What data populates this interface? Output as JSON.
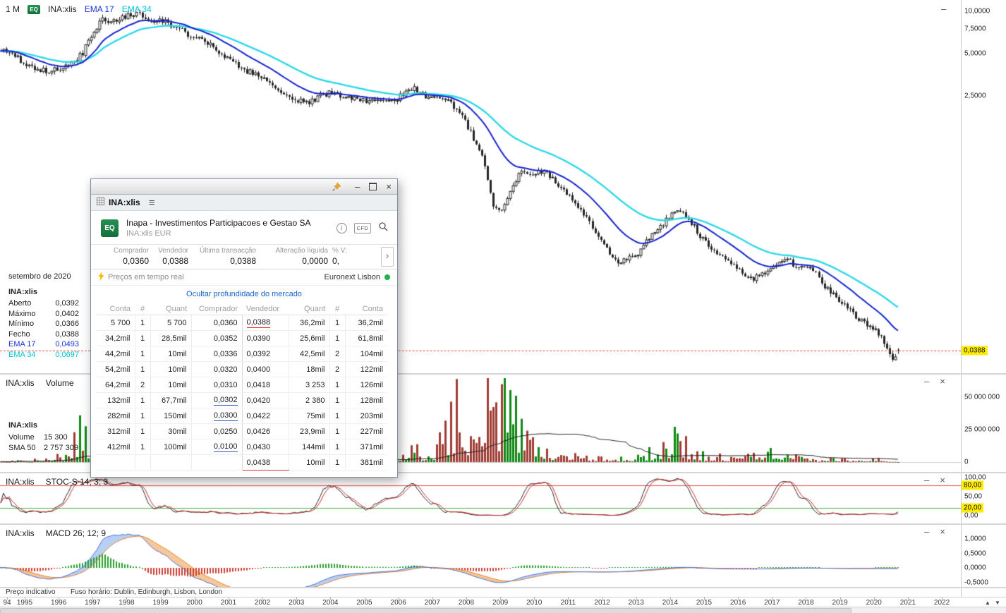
{
  "icons": {
    "minus": "–",
    "close": "×",
    "menu": "≡",
    "chevron_right": "›",
    "info": "i",
    "up_arrow": "▲",
    "down_arrow": "▼"
  },
  "main_chart": {
    "period": "1 M",
    "eq_badge": "EQ",
    "symbol": "INA:xlis",
    "ema17_label": "EMA 17",
    "ema34_label": "EMA 34",
    "price_axis": [
      "10,0000",
      "7,5000",
      "5,0000",
      "2,5000"
    ],
    "last_price_badge": "0,0388",
    "data_window": {
      "date": "setembro de 2020",
      "symbol": "INA:xlis",
      "rows": [
        {
          "label": "Aberto",
          "value": "0,0392"
        },
        {
          "label": "Máximo",
          "value": "0,0402"
        },
        {
          "label": "Mínimo",
          "value": "0,0366"
        },
        {
          "label": "Fecho",
          "value": "0,0388"
        },
        {
          "label": "EMA 17",
          "value": "0,0493",
          "cls": "ema17"
        },
        {
          "label": "EMA 34",
          "value": "0,0697",
          "cls": "ema34"
        }
      ]
    }
  },
  "volume_panel": {
    "title_symbol": "INA:xlis",
    "title_study": "Volume",
    "axis": [
      "50 000 000",
      "25 000 000",
      "0"
    ],
    "overlay": {
      "symbol": "INA:xlis",
      "volume_label": "Volume",
      "volume_value": "15 300",
      "sma_label": "SMA 50",
      "sma_value": "2 757 309"
    }
  },
  "stoch_panel": {
    "title_symbol": "INA:xlis",
    "title_study": "STOC-S 14; 3; 3",
    "axis": [
      "100,00",
      "80,00",
      "50,00",
      "20,00",
      "0,00"
    ]
  },
  "macd_panel": {
    "title_symbol": "INA:xlis",
    "title_study": "MACD 26; 12; 9",
    "axis": [
      "1,0000",
      "0,5000",
      "0,0000",
      "-0,5000"
    ]
  },
  "status_bar": {
    "left": "Preço indicativo",
    "right": "Fuso horário: Dublin, Edinburgh, Lisbon, London"
  },
  "time_axis": [
    "94",
    "1995",
    "1996",
    "1997",
    "1998",
    "1999",
    "2000",
    "2001",
    "2002",
    "2003",
    "2004",
    "2005",
    "2006",
    "2007",
    "2008",
    "2009",
    "2010",
    "2011",
    "2012",
    "2013",
    "2014",
    "2015",
    "2016",
    "2017",
    "2018",
    "2019",
    "2020",
    "2021",
    "2022"
  ],
  "window": {
    "tab_title": "INA:xlis",
    "company": "Inapa - Investimentos Participacoes e Gestao SA",
    "instrument": "INA:xlis EUR",
    "eq_badge": "EQ",
    "cfd_badge": "CFD",
    "quote": {
      "headers": [
        "Comprador",
        "Vendedor",
        "Última transacção",
        "Alteração líquida",
        "% V:"
      ],
      "values": [
        "0,0360",
        "0,0388",
        "0,0388",
        "0,0000",
        "0,"
      ]
    },
    "realtime": "Preços em tempo real",
    "exchange": "Euronext Lisbon",
    "depth_link": "Ocultar profundidade do mercado",
    "table": {
      "headers": [
        "Conta",
        "#",
        "Quant",
        "Comprador",
        "Vendedor",
        "Quant",
        "#",
        "Conta"
      ],
      "rows": [
        {
          "c": [
            "5 700",
            "1",
            "5 700",
            "0,0360",
            "0,0388",
            "36,2mil",
            "1",
            "36,2mil"
          ],
          "u": {
            "4": "red"
          }
        },
        {
          "c": [
            "34,2mil",
            "1",
            "28,5mil",
            "0,0352",
            "0,0390",
            "25,6mil",
            "1",
            "61,8mil"
          ]
        },
        {
          "c": [
            "44,2mil",
            "1",
            "10mil",
            "0,0336",
            "0,0392",
            "42,5mil",
            "2",
            "104mil"
          ]
        },
        {
          "c": [
            "54,2mil",
            "1",
            "10mil",
            "0,0320",
            "0,0400",
            "18mil",
            "2",
            "122mil"
          ]
        },
        {
          "c": [
            "64,2mil",
            "2",
            "10mil",
            "0,0310",
            "0,0418",
            "3 253",
            "1",
            "126mil"
          ]
        },
        {
          "c": [
            "132mil",
            "1",
            "67,7mil",
            "0,0302",
            "0,0420",
            "2 380",
            "1",
            "128mil"
          ],
          "u": {
            "3": "blue"
          }
        },
        {
          "c": [
            "282mil",
            "1",
            "150mil",
            "0,0300",
            "0,0422",
            "75mil",
            "1",
            "203mil"
          ],
          "u": {
            "3": "blue"
          }
        },
        {
          "c": [
            "312mil",
            "1",
            "30mil",
            "0,0250",
            "0,0426",
            "23,9mil",
            "1",
            "227mil"
          ]
        },
        {
          "c": [
            "412mil",
            "1",
            "100mil",
            "0,0100",
            "0,0430",
            "144mil",
            "1",
            "371mil"
          ],
          "u": {
            "3": "blue"
          }
        },
        {
          "c": [
            "",
            "",
            "",
            "",
            "0,0438",
            "10mil",
            "1",
            "381mil"
          ],
          "u": {
            "4": "red-wide"
          }
        }
      ]
    }
  },
  "chart_data": {
    "type": "candlestick",
    "symbol": "INA:xlis",
    "interval": "1 month",
    "scale": "log",
    "time_range": [
      "1994-04",
      "2020-09"
    ],
    "price_axis_values": [
      10,
      7.5,
      5,
      2.5
    ],
    "last_price": 0.0388,
    "last_candle": {
      "open": 0.0392,
      "high": 0.0402,
      "low": 0.0366,
      "close": 0.0388
    },
    "ema_periods": [
      17,
      34
    ],
    "ema_last_values": {
      "ema17": 0.0493,
      "ema34": 0.0697
    },
    "price_anchors": [
      [
        1994.3,
        5.4
      ],
      [
        1994.7,
        5.0
      ],
      [
        1995.0,
        4.1
      ],
      [
        1995.4,
        3.75
      ],
      [
        1995.9,
        3.8
      ],
      [
        1996.3,
        4.1
      ],
      [
        1996.7,
        5.0
      ],
      [
        1997.0,
        6.9
      ],
      [
        1997.25,
        8.8
      ],
      [
        1997.5,
        8.3
      ],
      [
        1997.8,
        8.8
      ],
      [
        1998.1,
        9.6
      ],
      [
        1998.3,
        9.9
      ],
      [
        1998.6,
        8.3
      ],
      [
        1999.0,
        8.6
      ],
      [
        1999.4,
        7.8
      ],
      [
        1999.8,
        6.8
      ],
      [
        2000.1,
        6.4
      ],
      [
        2000.5,
        5.7
      ],
      [
        2001.0,
        4.5
      ],
      [
        2001.5,
        3.8
      ],
      [
        2002.0,
        3.4
      ],
      [
        2002.5,
        2.8
      ],
      [
        2003.0,
        2.35
      ],
      [
        2003.3,
        2.2
      ],
      [
        2003.7,
        2.5
      ],
      [
        2004.0,
        2.65
      ],
      [
        2004.5,
        2.4
      ],
      [
        2005.0,
        2.3
      ],
      [
        2005.5,
        2.25
      ],
      [
        2006.0,
        2.45
      ],
      [
        2006.4,
        2.85
      ],
      [
        2006.8,
        2.5
      ],
      [
        2007.1,
        2.55
      ],
      [
        2007.5,
        2.25
      ],
      [
        2007.9,
        1.8
      ],
      [
        2008.2,
        1.25
      ],
      [
        2008.5,
        0.85
      ],
      [
        2008.8,
        0.42
      ],
      [
        2009.0,
        0.36
      ],
      [
        2009.3,
        0.55
      ],
      [
        2009.6,
        0.74
      ],
      [
        2010.0,
        0.7
      ],
      [
        2010.3,
        0.74
      ],
      [
        2010.7,
        0.58
      ],
      [
        2011.0,
        0.5
      ],
      [
        2011.4,
        0.38
      ],
      [
        2011.8,
        0.26
      ],
      [
        2012.1,
        0.21
      ],
      [
        2012.5,
        0.16
      ],
      [
        2013.0,
        0.185
      ],
      [
        2013.5,
        0.26
      ],
      [
        2013.9,
        0.33
      ],
      [
        2014.2,
        0.4
      ],
      [
        2014.6,
        0.32
      ],
      [
        2015.0,
        0.23
      ],
      [
        2015.5,
        0.185
      ],
      [
        2016.0,
        0.145
      ],
      [
        2016.5,
        0.125
      ],
      [
        2017.0,
        0.15
      ],
      [
        2017.4,
        0.175
      ],
      [
        2017.8,
        0.148
      ],
      [
        2018.1,
        0.158
      ],
      [
        2018.5,
        0.115
      ],
      [
        2019.0,
        0.085
      ],
      [
        2019.5,
        0.066
      ],
      [
        2020.0,
        0.054
      ],
      [
        2020.3,
        0.044
      ],
      [
        2020.55,
        0.034
      ],
      [
        2020.72,
        0.0388
      ]
    ],
    "volume_axis_values_millions": [
      50,
      25,
      0
    ],
    "volume_sma_period": 50,
    "last_volume_millions": 0.0153,
    "volume_anchors_millions": [
      [
        1994.3,
        0.6
      ],
      [
        1995.5,
        0.8
      ],
      [
        1996.2,
        4
      ],
      [
        1996.6,
        16
      ],
      [
        1997.0,
        10
      ],
      [
        1997.5,
        6
      ],
      [
        1998.0,
        7
      ],
      [
        1998.6,
        4
      ],
      [
        1999.2,
        3.5
      ],
      [
        2000.0,
        3
      ],
      [
        2001.0,
        2.5
      ],
      [
        2002.0,
        2
      ],
      [
        2003.0,
        1.6
      ],
      [
        2004.0,
        2.2
      ],
      [
        2005.0,
        1.6
      ],
      [
        2006.0,
        3
      ],
      [
        2006.5,
        7
      ],
      [
        2007.0,
        4
      ],
      [
        2007.7,
        30
      ],
      [
        2008.0,
        14
      ],
      [
        2008.5,
        26
      ],
      [
        2008.9,
        40
      ],
      [
        2009.1,
        34
      ],
      [
        2009.5,
        24
      ],
      [
        2010.0,
        12
      ],
      [
        2010.5,
        7
      ],
      [
        2011.0,
        5
      ],
      [
        2012.0,
        2.2
      ],
      [
        2013.0,
        3
      ],
      [
        2013.8,
        8
      ],
      [
        2014.2,
        18
      ],
      [
        2014.6,
        7
      ],
      [
        2015.0,
        4
      ],
      [
        2016.0,
        2
      ],
      [
        2016.8,
        6
      ],
      [
        2017.3,
        4
      ],
      [
        2018.0,
        2
      ],
      [
        2019.0,
        1.4
      ],
      [
        2020.0,
        1.8
      ],
      [
        2020.72,
        0.0153
      ]
    ],
    "volume_spikes_millions": [
      [
        1996.62,
        36
      ],
      [
        2007.72,
        64
      ],
      [
        2008.88,
        46
      ],
      [
        2009.05,
        60
      ],
      [
        2014.2,
        22
      ]
    ],
    "stochastic": {
      "params": [
        14,
        3,
        3
      ],
      "guides": [
        80,
        20
      ],
      "axis_values": [
        100,
        80,
        50,
        20,
        0
      ]
    },
    "macd": {
      "params": [
        26,
        12,
        9
      ],
      "axis_values": [
        1,
        0.5,
        0,
        -0.5
      ]
    }
  }
}
